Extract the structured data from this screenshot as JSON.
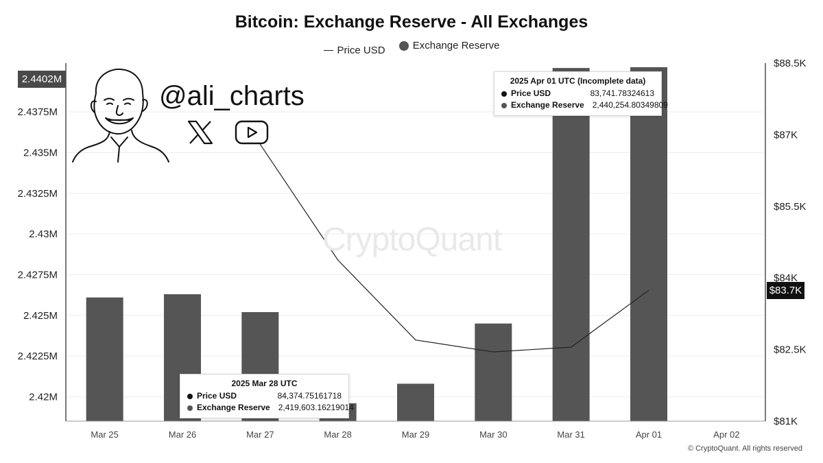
{
  "header": {
    "title": "Bitcoin: Exchange Reserve - All Exchanges",
    "legend": [
      {
        "label": "Price USD",
        "kind": "line"
      },
      {
        "label": "Exchange Reserve",
        "kind": "dot"
      }
    ]
  },
  "branding": {
    "handle": "@ali_charts",
    "watermark": "CryptoQuant",
    "copyright": "© CryptoQuant. All rights reserved"
  },
  "badges": {
    "left_value": "2.4402M",
    "right_value": "$83.7K"
  },
  "tooltips": {
    "apr01": {
      "title": "2025 Apr 01 UTC (Incomplete data)",
      "rows": [
        {
          "label": "Price USD",
          "value": "83,741.78324613"
        },
        {
          "label": "Exchange Reserve",
          "value": "2,440,254.80349809"
        }
      ]
    },
    "mar28": {
      "title": "2025 Mar 28 UTC",
      "rows": [
        {
          "label": "Price USD",
          "value": "84,374.75161718"
        },
        {
          "label": "Exchange Reserve",
          "value": "2,419,603.16219014"
        }
      ]
    }
  },
  "colors": {
    "bar": "#555555",
    "line": "#222222",
    "grid": "#ececec",
    "axis": "#222222"
  },
  "chart_data": {
    "type": "bar",
    "categories": [
      "Mar 25",
      "Mar 26",
      "Mar 27",
      "Mar 28",
      "Mar 29",
      "Mar 30",
      "Mar 31",
      "Apr 01",
      "Apr 02"
    ],
    "series": [
      {
        "name": "Exchange Reserve",
        "type": "bar",
        "axis": "left",
        "values": [
          2.4261,
          2.4263,
          2.4252,
          2.4196,
          2.4208,
          2.4245,
          2.4402,
          2.44025,
          null
        ]
      },
      {
        "name": "Price USD",
        "type": "line",
        "axis": "right",
        "values": [
          null,
          null,
          86800,
          84374.75,
          82700,
          82450,
          82550,
          83741.78,
          null
        ]
      }
    ],
    "y_left": {
      "ticks": [
        2.42,
        2.4225,
        2.425,
        2.4275,
        2.43,
        2.4325,
        2.435,
        2.4375
      ],
      "tick_labels": [
        "2.42M",
        "2.4225M",
        "2.425M",
        "2.4275M",
        "2.43M",
        "2.4325M",
        "2.435M",
        "2.4375M"
      ],
      "range": [
        2.4185,
        2.4405
      ]
    },
    "y_right": {
      "ticks": [
        81000,
        82500,
        84000,
        85500,
        87000,
        88500
      ],
      "tick_labels": [
        "$81K",
        "$82.5K",
        "$84K",
        "$85.5K",
        "$87K",
        "$88.5K"
      ],
      "range": [
        81000,
        88500
      ]
    },
    "grid": true
  }
}
